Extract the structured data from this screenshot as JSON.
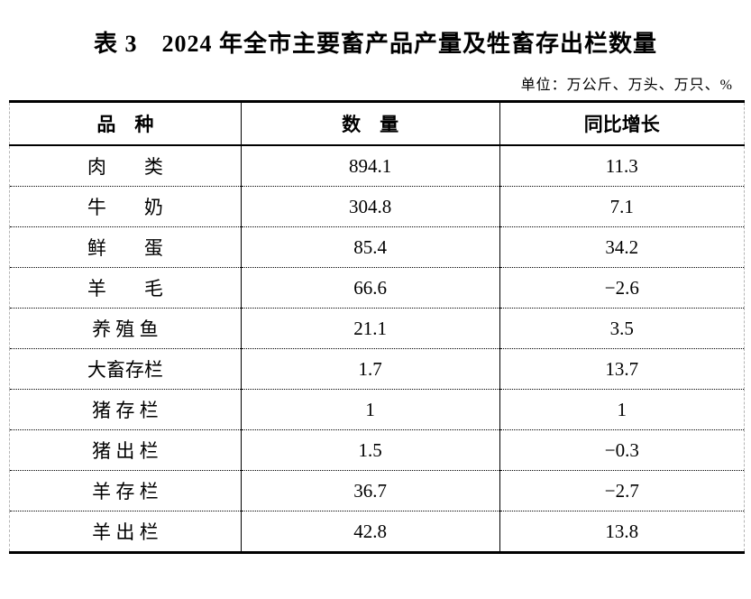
{
  "page": {
    "title": "表 3　2024 年全市主要畜产品产量及牲畜存出栏数量",
    "unit_note": "单位：万公斤、万头、万只、%"
  },
  "table": {
    "columns": [
      "品　种",
      "数　量",
      "同比增长"
    ],
    "rows": [
      {
        "category": "肉　　类",
        "quantity": "894.1",
        "growth": "11.3"
      },
      {
        "category": "牛　　奶",
        "quantity": "304.8",
        "growth": "7.1"
      },
      {
        "category": "鲜　　蛋",
        "quantity": "85.4",
        "growth": "34.2"
      },
      {
        "category": "羊　　毛",
        "quantity": "66.6",
        "growth": "−2.6"
      },
      {
        "category": "养 殖 鱼",
        "quantity": "21.1",
        "growth": "3.5"
      },
      {
        "category": "大畜存栏",
        "quantity": "1.7",
        "growth": "13.7"
      },
      {
        "category": "猪 存 栏",
        "quantity": "1",
        "growth": "1"
      },
      {
        "category": "猪 出 栏",
        "quantity": "1.5",
        "growth": "−0.3"
      },
      {
        "category": "羊 存 栏",
        "quantity": "36.7",
        "growth": "−2.7"
      },
      {
        "category": "羊 出 栏",
        "quantity": "42.8",
        "growth": "13.8"
      }
    ]
  },
  "chart_data": {
    "type": "table",
    "title": "表 3 2024 年全市主要畜产品产量及牲畜存出栏数量",
    "unit": "万公斤、万头、万只、%",
    "columns": [
      "品种",
      "数量",
      "同比增长"
    ],
    "rows": [
      [
        "肉类",
        894.1,
        11.3
      ],
      [
        "牛奶",
        304.8,
        7.1
      ],
      [
        "鲜蛋",
        85.4,
        34.2
      ],
      [
        "羊毛",
        66.6,
        -2.6
      ],
      [
        "养殖鱼",
        21.1,
        3.5
      ],
      [
        "大畜存栏",
        1.7,
        13.7
      ],
      [
        "猪存栏",
        1,
        1
      ],
      [
        "猪出栏",
        1.5,
        -0.3
      ],
      [
        "羊存栏",
        36.7,
        -2.7
      ],
      [
        "羊出栏",
        42.8,
        13.8
      ]
    ]
  }
}
